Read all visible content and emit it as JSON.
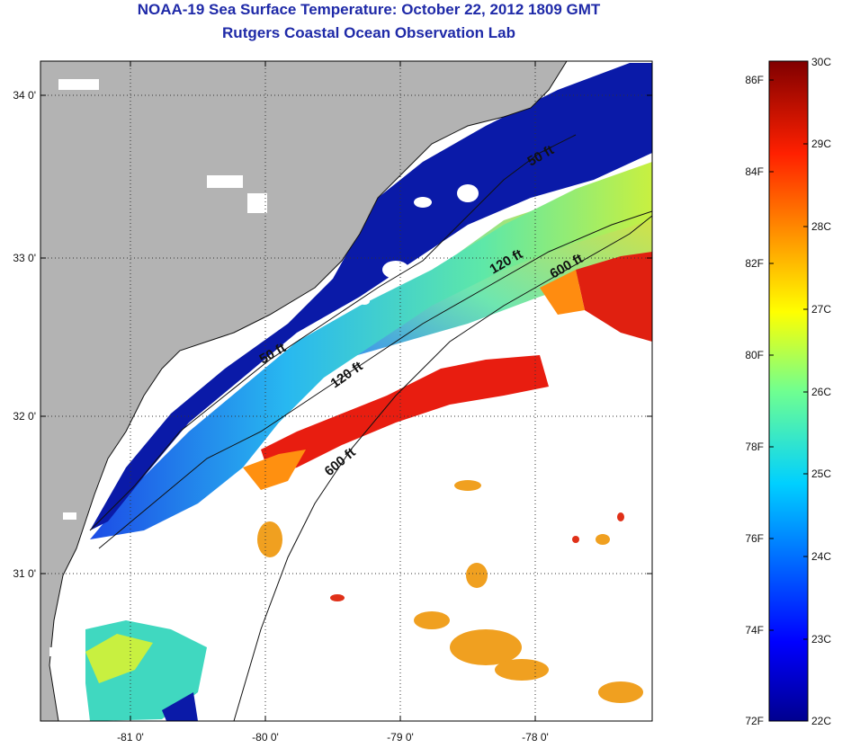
{
  "header": {
    "title": "NOAA-19 Sea Surface Temperature:  October 22, 2012 1809 GMT",
    "subtitle": "Rutgers Coastal Ocean Observation Lab"
  },
  "map": {
    "lat_labels": [
      "34 0'",
      "33 0'",
      "32 0'",
      "31 0'"
    ],
    "lon_labels": [
      "-81 0'",
      "-80 0'",
      "-79 0'",
      "-78 0'"
    ],
    "contour_labels": [
      "50 ft",
      "50 ft",
      "120 ft",
      "120 ft",
      "600 ft",
      "600 ft"
    ],
    "colors": {
      "land": "#b3b3b3",
      "cloud": "#ffffff",
      "cold": "#0a14a0",
      "warm": "#d81010"
    }
  },
  "colorbar": {
    "fahrenheit_labels": [
      "86F",
      "84F",
      "82F",
      "80F",
      "78F",
      "76F",
      "74F",
      "72F"
    ],
    "celsius_labels": [
      "30C",
      "29C",
      "28C",
      "27C",
      "26C",
      "25C",
      "24C",
      "23C",
      "22C"
    ],
    "min_c": 22,
    "max_c": 30
  }
}
